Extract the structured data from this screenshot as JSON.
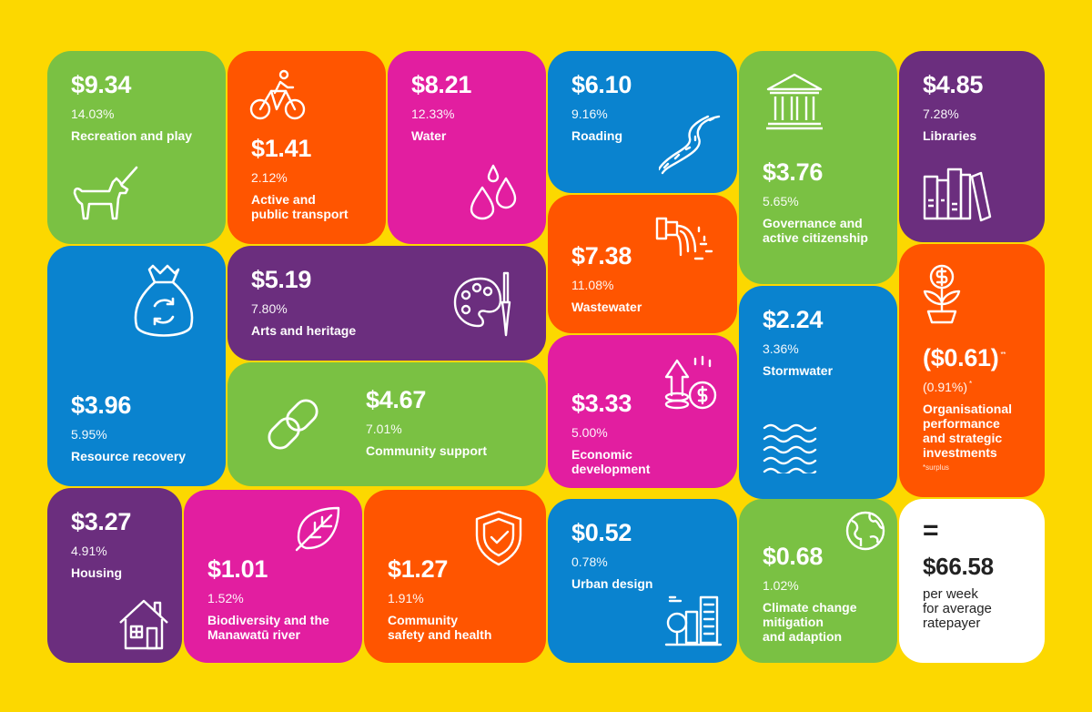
{
  "colors": {
    "background": "#FCD800",
    "green": "#7AC143",
    "orange": "#FF5500",
    "pink": "#E21EA0",
    "blue": "#0A83CF",
    "purple": "#6B2E7E",
    "white": "#FFFFFF"
  },
  "tiles": {
    "recreation": {
      "amount": "$9.34",
      "percent": "14.03%",
      "label": "Recreation and play",
      "icon": "dog-icon"
    },
    "active_transport": {
      "amount": "$1.41",
      "percent": "2.12%",
      "label": "Active and\npublic transport",
      "icon": "cyclist-icon"
    },
    "water": {
      "amount": "$8.21",
      "percent": "12.33%",
      "label": "Water",
      "icon": "water-drops-icon"
    },
    "roading": {
      "amount": "$6.10",
      "percent": "9.16%",
      "label": "Roading",
      "icon": "road-icon"
    },
    "governance": {
      "amount": "$3.76",
      "percent": "5.65%",
      "label": "Governance and\nactive citizenship",
      "icon": "government-building-icon"
    },
    "libraries": {
      "amount": "$4.85",
      "percent": "7.28%",
      "label": "Libraries",
      "icon": "books-icon"
    },
    "resource_recovery": {
      "amount": "$3.96",
      "percent": "5.95%",
      "label": "Resource recovery",
      "icon": "recycle-bag-icon"
    },
    "arts": {
      "amount": "$5.19",
      "percent": "7.80%",
      "label": "Arts and heritage",
      "icon": "paint-palette-icon"
    },
    "wastewater": {
      "amount": "$7.38",
      "percent": "11.08%",
      "label": "Wastewater",
      "icon": "outfall-pipe-icon"
    },
    "stormwater": {
      "amount": "$2.24",
      "percent": "3.36%",
      "label": "Stormwater",
      "icon": "waves-icon"
    },
    "organisational": {
      "amount": "($0.61)",
      "amount_mark": "**",
      "percent": "(0.91%)",
      "percent_mark": "*",
      "label": "Organisational\nperformance\nand strategic\ninvestments",
      "note": "*surplus",
      "icon": "money-plant-icon"
    },
    "community_support": {
      "amount": "$4.67",
      "percent": "7.01%",
      "label": "Community support",
      "icon": "chain-link-icon"
    },
    "economic": {
      "amount": "$3.33",
      "percent": "5.00%",
      "label": "Economic\ndevelopment",
      "icon": "coins-growth-icon"
    },
    "housing": {
      "amount": "$3.27",
      "percent": "4.91%",
      "label": "Housing",
      "icon": "house-icon"
    },
    "biodiversity": {
      "amount": "$1.01",
      "percent": "1.52%",
      "label": "Biodiversity and the\nManawatū river",
      "icon": "leaf-icon"
    },
    "community_safety": {
      "amount": "$1.27",
      "percent": "1.91%",
      "label": "Community\nsafety and health",
      "icon": "shield-check-icon"
    },
    "urban_design": {
      "amount": "$0.52",
      "percent": "0.78%",
      "label": "Urban design",
      "icon": "city-icon"
    },
    "climate": {
      "amount": "$0.68",
      "percent": "1.02%",
      "label": "Climate change\nmitigation\nand adaption",
      "icon": "globe-icon"
    },
    "total": {
      "symbol": "=",
      "amount": "$66.58",
      "label": "per week\nfor average\nratepayer"
    }
  }
}
